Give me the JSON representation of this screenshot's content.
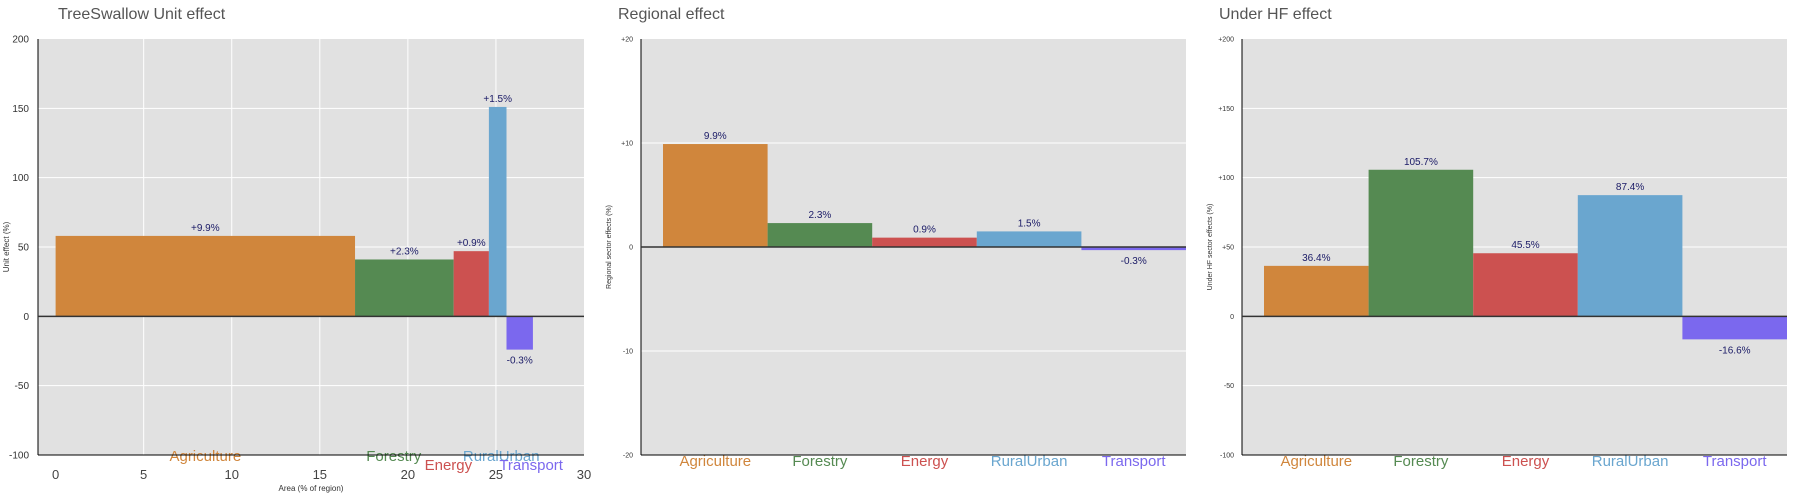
{
  "colors": {
    "Agriculture": "#D0863C",
    "Forestry": "#558A52",
    "Energy": "#CC5150",
    "RuralUrban": "#6AA6CF",
    "Transport": "#7B68EE",
    "panel_bg": "#E1E1E1",
    "grid": "#FFFFFF",
    "label_text": "#1a1a66"
  },
  "chart_data": [
    {
      "type": "bar",
      "title": "TreeSwallow Unit effect",
      "xlabel": "Area (% of region)",
      "ylabel": "Unit effect (%)",
      "ylim": [
        -100,
        200
      ],
      "yticks": [
        -100,
        -50,
        0,
        50,
        100,
        150,
        200
      ],
      "ytick_labels": [
        "-100",
        "-50",
        "0",
        "50",
        "100",
        "150",
        "200"
      ],
      "xlim": [
        -1,
        30
      ],
      "xticks": [
        0,
        5,
        10,
        15,
        20,
        25,
        30
      ],
      "xtick_labels": [
        "0",
        "5",
        "10",
        "15",
        "20",
        "25",
        "30"
      ],
      "grid": true,
      "categories": [
        "Agriculture",
        "Forestry",
        "Energy",
        "RuralUrban",
        "Transport"
      ],
      "bars": [
        {
          "category": "Agriculture",
          "x_start": 0,
          "x_end": 17.0,
          "value": 58,
          "label": "+9.9%"
        },
        {
          "category": "Forestry",
          "x_start": 17.0,
          "x_end": 22.6,
          "value": 41,
          "label": "+2.3%"
        },
        {
          "category": "Energy",
          "x_start": 22.6,
          "x_end": 24.6,
          "value": 47,
          "label": "+0.9%"
        },
        {
          "category": "RuralUrban",
          "x_start": 24.6,
          "x_end": 25.6,
          "value": 151,
          "label": "+1.5%"
        },
        {
          "category": "Transport",
          "x_start": 25.6,
          "x_end": 27.1,
          "value": -24,
          "label": "-0.3%"
        }
      ]
    },
    {
      "type": "bar",
      "title": "Regional effect",
      "ylabel": "Regional sector effects (%)",
      "ylim": [
        -20,
        20
      ],
      "yticks": [
        -20,
        -10,
        0,
        10,
        20
      ],
      "ytick_labels": [
        "-20",
        "-10",
        "0",
        "+10",
        "+20"
      ],
      "grid": true,
      "categories": [
        "Agriculture",
        "Forestry",
        "Energy",
        "RuralUrban",
        "Transport"
      ],
      "values": [
        9.9,
        2.3,
        0.9,
        1.5,
        -0.3
      ],
      "labels": [
        "9.9%",
        "2.3%",
        "0.9%",
        "1.5%",
        "-0.3%"
      ]
    },
    {
      "type": "bar",
      "title": "Under HF effect",
      "ylabel": "Under HF sector effects (%)",
      "ylim": [
        -100,
        200
      ],
      "yticks": [
        -100,
        -50,
        0,
        50,
        100,
        150,
        200
      ],
      "ytick_labels": [
        "-100",
        "-50",
        "0",
        "+50",
        "+100",
        "+150",
        "+200"
      ],
      "grid": true,
      "categories": [
        "Agriculture",
        "Forestry",
        "Energy",
        "RuralUrban",
        "Transport"
      ],
      "values": [
        36.4,
        105.7,
        45.5,
        87.4,
        -16.6
      ],
      "labels": [
        "36.4%",
        "105.7%",
        "45.5%",
        "87.4%",
        "-16.6%"
      ]
    }
  ]
}
